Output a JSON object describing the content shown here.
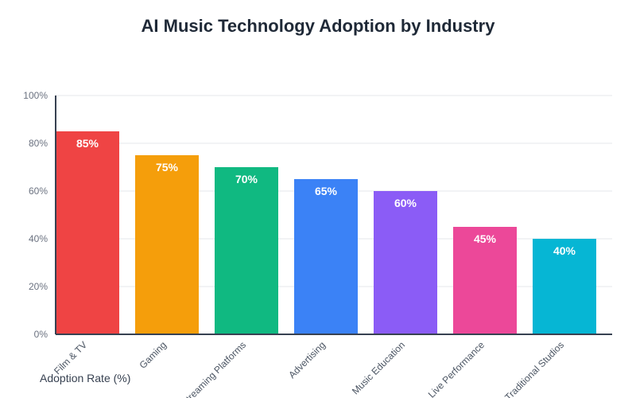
{
  "chart_data": {
    "type": "bar",
    "title": "AI Music Technology Adoption by Industry",
    "xlabel": "",
    "ylabel": "Adoption Rate (%)",
    "ylim": [
      0,
      100
    ],
    "yticks": [
      "0%",
      "20%",
      "40%",
      "60%",
      "80%",
      "100%"
    ],
    "ytick_values": [
      0,
      20,
      40,
      60,
      80,
      100
    ],
    "grid": true,
    "categories": [
      "Film & TV",
      "Gaming",
      "Streaming Platforms",
      "Advertising",
      "Music Education",
      "Live Performance",
      "Traditional Studios"
    ],
    "values": [
      85,
      75,
      70,
      65,
      60,
      45,
      40
    ],
    "value_labels": [
      "85%",
      "75%",
      "70%",
      "65%",
      "60%",
      "45%",
      "40%"
    ],
    "colors": [
      "#ef4444",
      "#f59e0b",
      "#10b981",
      "#3b82f6",
      "#8b5cf6",
      "#ec4899",
      "#06b6d4"
    ]
  }
}
